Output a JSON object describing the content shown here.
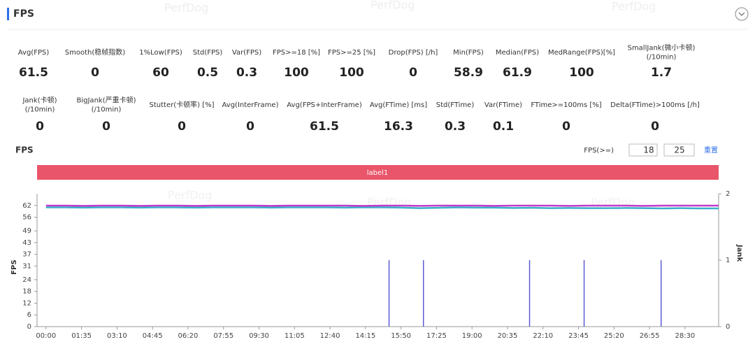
{
  "header": {
    "title": "FPS",
    "watermark": "PerfDog"
  },
  "metrics": [
    [
      {
        "label": [
          "Avg(FPS)"
        ],
        "value": 61.5
      },
      {
        "label": [
          "Smooth(稳帧指数)"
        ],
        "value": 0
      },
      {
        "label": [
          "1%Low(FPS)"
        ],
        "value": 60
      },
      {
        "label": [
          "Std(FPS)"
        ],
        "value": 0.5
      },
      {
        "label": [
          "Var(FPS)"
        ],
        "value": 0.3
      },
      {
        "label": [
          "FPS>=18 [%]"
        ],
        "value": 100
      },
      {
        "label": [
          "FPS>=25 [%]"
        ],
        "value": 100
      },
      {
        "label": [
          "Drop(FPS) [/h]"
        ],
        "value": 0
      },
      {
        "label": [
          "Min(FPS)"
        ],
        "value": 58.9
      },
      {
        "label": [
          "Median(FPS)"
        ],
        "value": 61.9
      },
      {
        "label": [
          "MedRange(FPS)[%]"
        ],
        "value": 100
      },
      {
        "label": [
          "SmallJank(微小卡顿)",
          "(/10min)"
        ],
        "value": 1.7
      }
    ],
    [
      {
        "label": [
          "Jank(卡顿)",
          "(/10min)"
        ],
        "value": 0
      },
      {
        "label": [
          "BigJank(严重卡顿)",
          "(/10min)"
        ],
        "value": 0
      },
      {
        "label": [
          "Stutter(卡顿率) [%]"
        ],
        "value": 0
      },
      {
        "label": [
          "Avg(InterFrame)"
        ],
        "value": 0
      },
      {
        "label": [
          "Avg(FPS+InterFrame)"
        ],
        "value": 61.5
      },
      {
        "label": [
          "Avg(FTime) [ms]"
        ],
        "value": 16.3
      },
      {
        "label": [
          "Std(FTime)"
        ],
        "value": 0.3
      },
      {
        "label": [
          "Var(FTime)"
        ],
        "value": 0.1
      },
      {
        "label": [
          "FTime>=100ms [%]"
        ],
        "value": 0
      },
      {
        "label": [
          "Delta(FTime)>100ms [/h]"
        ],
        "value": 0
      }
    ]
  ],
  "controls": {
    "label": "FPS(>=)",
    "inputs": [
      18,
      25
    ],
    "reset": "重置",
    "band_label": "label1"
  },
  "chart_data": {
    "type": "line",
    "title": "FPS",
    "y_label": "FPS",
    "y2_label": "Jank",
    "x": [
      0,
      50,
      100,
      150,
      200,
      250,
      300,
      350,
      400,
      450,
      500,
      550,
      600,
      650,
      700,
      750,
      800,
      850,
      900,
      950,
      1000,
      1050,
      1100,
      1150,
      1200,
      1250,
      1300,
      1350,
      1400,
      1450,
      1500,
      1550,
      1600,
      1650,
      1700,
      1750,
      1800
    ],
    "xlim": [
      -24,
      1800
    ],
    "xticks": [
      {
        "value": 0,
        "label": "00:00"
      },
      {
        "value": 95,
        "label": "01:35"
      },
      {
        "value": 190,
        "label": "03:10"
      },
      {
        "value": 285,
        "label": "04:45"
      },
      {
        "value": 380,
        "label": "06:20"
      },
      {
        "value": 475,
        "label": "07:55"
      },
      {
        "value": 570,
        "label": "09:30"
      },
      {
        "value": 665,
        "label": "11:05"
      },
      {
        "value": 760,
        "label": "12:40"
      },
      {
        "value": 855,
        "label": "14:15"
      },
      {
        "value": 950,
        "label": "15:50"
      },
      {
        "value": 1045,
        "label": "17:25"
      },
      {
        "value": 1140,
        "label": "19:00"
      },
      {
        "value": 1235,
        "label": "20:35"
      },
      {
        "value": 1330,
        "label": "22:10"
      },
      {
        "value": 1425,
        "label": "23:45"
      },
      {
        "value": 1520,
        "label": "25:20"
      },
      {
        "value": 1615,
        "label": "26:55"
      },
      {
        "value": 1710,
        "label": "28:30"
      }
    ],
    "ylim": [
      0,
      68
    ],
    "yticks": [
      0,
      6,
      12,
      18,
      24,
      31,
      37,
      43,
      49,
      56,
      62
    ],
    "y2lim": [
      0,
      2
    ],
    "y2ticks": [
      0,
      1,
      2
    ],
    "series": [
      {
        "color": "#3bb0c9",
        "values": [
          61.0,
          61.0,
          60.9,
          61.0,
          61.0,
          60.9,
          61.0,
          61.0,
          60.9,
          61.0,
          61.0,
          61.0,
          60.9,
          61.0,
          61.0,
          61.0,
          60.9,
          61.0,
          61.0,
          60.9,
          60.6,
          60.8,
          61.0,
          60.9,
          60.9,
          60.7,
          60.8,
          60.6,
          60.7,
          60.6,
          60.6,
          60.7,
          60.6,
          60.5,
          60.6,
          60.5,
          60.5
        ]
      },
      {
        "color": "#c03ccc",
        "values": [
          61.9,
          61.9,
          61.8,
          61.9,
          61.9,
          61.8,
          61.9,
          61.9,
          61.8,
          61.9,
          61.9,
          61.9,
          61.8,
          61.9,
          61.9,
          61.9,
          61.9,
          61.8,
          61.9,
          61.9,
          61.8,
          61.9,
          61.9,
          61.9,
          61.8,
          61.9,
          61.9,
          61.9,
          61.8,
          61.9,
          61.9,
          61.9,
          61.8,
          61.9,
          61.9,
          61.9,
          61.9
        ]
      },
      {
        "color": "#5b5bd6",
        "axis": "y2",
        "x": [
          918,
          1010,
          1294,
          1440,
          1646
        ],
        "values": [
          1,
          1,
          1,
          1,
          1
        ]
      }
    ]
  }
}
